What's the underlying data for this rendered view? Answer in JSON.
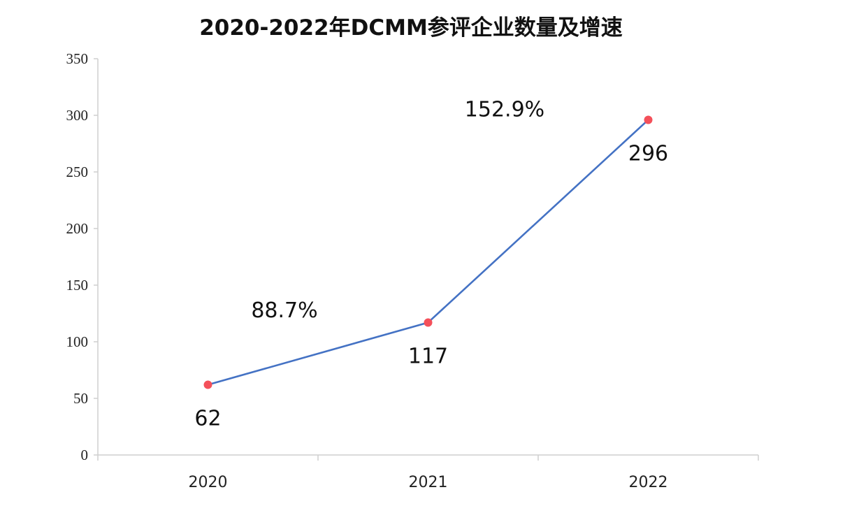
{
  "chart_data": {
    "type": "line",
    "title": "2020-2022年DCMM参评企业数量及增速",
    "categories": [
      "2020",
      "2021",
      "2022"
    ],
    "series": [
      {
        "values": [
          62,
          117,
          296
        ],
        "data_labels": [
          "62",
          "117",
          "296"
        ]
      }
    ],
    "growth_annotations": [
      {
        "between": [
          "2020",
          "2021"
        ],
        "label": "88.7%"
      },
      {
        "between": [
          "2021",
          "2022"
        ],
        "label": "152.9%"
      }
    ],
    "y_ticks": [
      "0",
      "50",
      "100",
      "150",
      "200",
      "250",
      "300",
      "350"
    ],
    "ylim": [
      0,
      350
    ],
    "xlabel": "",
    "ylabel": "",
    "grid": false,
    "legend": "none",
    "colors": {
      "line": "#4472c4",
      "marker": "#f4505a",
      "axis": "#cfcfcf",
      "text": "#111111"
    }
  }
}
